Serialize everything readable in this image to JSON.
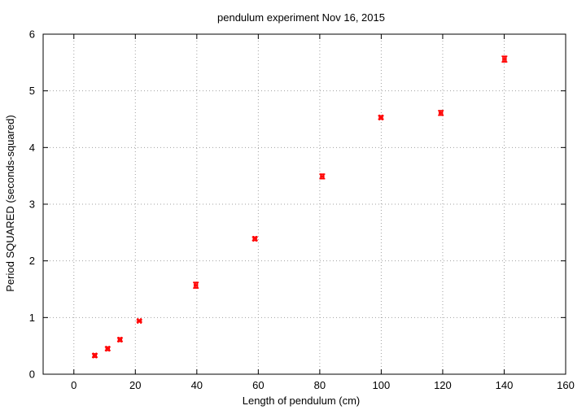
{
  "chart_data": {
    "type": "scatter",
    "title": "pendulum experiment Nov 16, 2015",
    "xlabel": "Length of pendulum (cm)",
    "ylabel": "Period SQUARED (seconds-squared)",
    "xlim": [
      -10,
      160
    ],
    "ylim": [
      0,
      6
    ],
    "xticks": [
      0,
      20,
      40,
      60,
      80,
      100,
      120,
      140,
      160
    ],
    "yticks": [
      0,
      1,
      2,
      3,
      4,
      5,
      6
    ],
    "grid": true,
    "legend": "none",
    "marker_color": "#ff0000",
    "series": [
      {
        "x": [
          6.8,
          11.0,
          15.0,
          21.3,
          39.7,
          58.9,
          80.8,
          99.9,
          119.4,
          140.1
        ],
        "y": [
          0.33,
          0.45,
          0.61,
          0.94,
          1.57,
          2.39,
          3.49,
          4.53,
          4.61,
          5.56
        ],
        "yerr": [
          0.03,
          0.03,
          0.03,
          0.02,
          0.05,
          0.03,
          0.04,
          0.03,
          0.04,
          0.05
        ],
        "xerr": [
          0.5,
          0.5,
          0.5,
          0.5,
          0.5,
          0.5,
          0.5,
          0.5,
          0.5,
          0.5
        ]
      }
    ]
  }
}
